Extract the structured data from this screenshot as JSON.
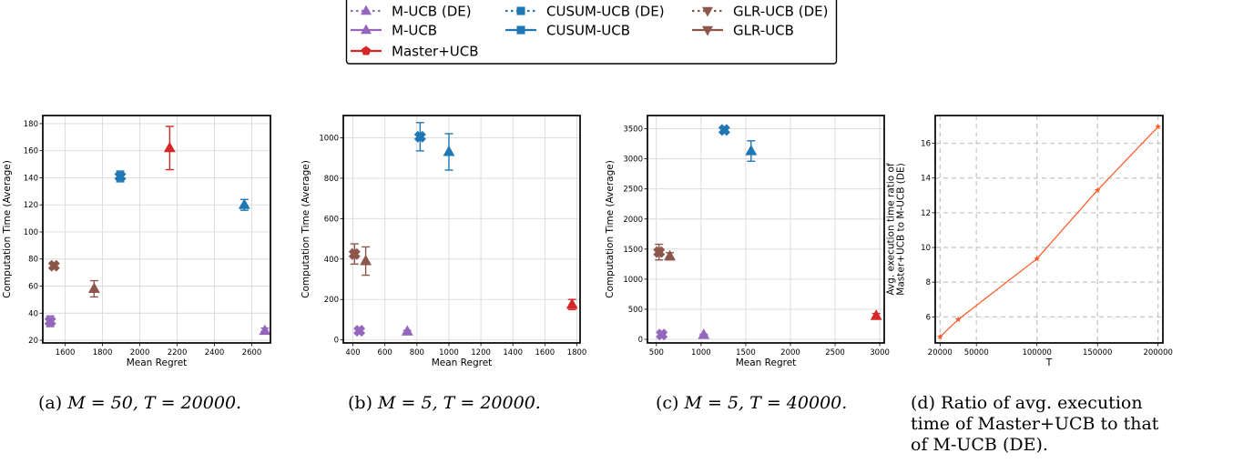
{
  "colors": {
    "m_ucb": "#9467bd",
    "cusum_ucb": "#1f77b4",
    "master_ucb": "#d62728",
    "glr_ucb": "#8c564b",
    "ratio_line": "#ff5722"
  },
  "legend": {
    "entries": [
      {
        "key": "m_ucb_de",
        "label": "M-UCB (DE)",
        "color": "#9467bd",
        "dashed": true,
        "marker": "triangle"
      },
      {
        "key": "m_ucb",
        "label": "M-UCB",
        "color": "#9467bd",
        "dashed": false,
        "marker": "triangle"
      },
      {
        "key": "master_ucb",
        "label": "Master+UCB",
        "color": "#d62728",
        "dashed": false,
        "marker": "pentagon"
      },
      {
        "key": "cusum_ucb_de",
        "label": "CUSUM-UCB (DE)",
        "color": "#1f77b4",
        "dashed": true,
        "marker": "square"
      },
      {
        "key": "cusum_ucb",
        "label": "CUSUM-UCB",
        "color": "#1f77b4",
        "dashed": false,
        "marker": "square"
      },
      {
        "key": "glr_ucb_de",
        "label": "GLR-UCB (DE)",
        "color": "#8c564b",
        "dashed": true,
        "marker": "tri-down"
      },
      {
        "key": "glr_ucb",
        "label": "GLR-UCB",
        "color": "#8c564b",
        "dashed": false,
        "marker": "tri-down"
      }
    ]
  },
  "captions": {
    "a": {
      "label": "(a)",
      "math": "M = 50, T = 20000."
    },
    "b": {
      "label": "(b)",
      "math": "M = 5, T = 20000."
    },
    "c": {
      "label": "(c)",
      "math": "M = 5, T = 40000."
    },
    "d": {
      "lines": [
        "(d) Ratio of avg. execution",
        "time of Master+UCB to that",
        "of M-UCB (DE)."
      ]
    }
  },
  "chart_data": [
    {
      "id": "a",
      "type": "scatter",
      "xlabel": "Mean Regret",
      "ylabel": "Computation Time (Average)",
      "xlim": [
        1480,
        2700
      ],
      "ylim": [
        18,
        186
      ],
      "xticks": [
        1600,
        1800,
        2000,
        2200,
        2400,
        2600
      ],
      "yticks": [
        20,
        40,
        60,
        80,
        100,
        120,
        140,
        160,
        180
      ],
      "grid": true,
      "points": [
        {
          "series": "M-UCB (DE)",
          "marker": "x",
          "color": "#9467bd",
          "x": 1520,
          "y": 34,
          "err": 4
        },
        {
          "series": "M-UCB",
          "marker": "triangle",
          "color": "#9467bd",
          "x": 2670,
          "y": 27,
          "err": 2
        },
        {
          "series": "GLR-UCB (DE)",
          "marker": "x",
          "color": "#8c564b",
          "x": 1540,
          "y": 75,
          "err": 2
        },
        {
          "series": "GLR-UCB",
          "marker": "triangle",
          "color": "#8c564b",
          "x": 1755,
          "y": 58,
          "err": 6
        },
        {
          "series": "CUSUM-UCB (DE)",
          "marker": "x",
          "color": "#1f77b4",
          "x": 1895,
          "y": 141,
          "err": 4
        },
        {
          "series": "CUSUM-UCB",
          "marker": "triangle",
          "color": "#1f77b4",
          "x": 2560,
          "y": 120,
          "err": 4
        },
        {
          "series": "Master+UCB",
          "marker": "triangle",
          "color": "#d62728",
          "x": 2160,
          "y": 162,
          "err": 16
        }
      ]
    },
    {
      "id": "b",
      "type": "scatter",
      "xlabel": "Mean Regret",
      "ylabel": "Computation Time (Average)",
      "xlim": [
        340,
        1820
      ],
      "ylim": [
        -15,
        1110
      ],
      "xticks": [
        400,
        600,
        800,
        1000,
        1200,
        1400,
        1600,
        1800
      ],
      "yticks": [
        0,
        200,
        400,
        600,
        800,
        1000
      ],
      "grid": true,
      "points": [
        {
          "series": "M-UCB (DE)",
          "marker": "x",
          "color": "#9467bd",
          "x": 440,
          "y": 45,
          "err": 5
        },
        {
          "series": "M-UCB",
          "marker": "triangle",
          "color": "#9467bd",
          "x": 740,
          "y": 42,
          "err": 5
        },
        {
          "series": "GLR-UCB (DE)",
          "marker": "x",
          "color": "#8c564b",
          "x": 410,
          "y": 425,
          "err": 50
        },
        {
          "series": "GLR-UCB",
          "marker": "triangle",
          "color": "#8c564b",
          "x": 480,
          "y": 390,
          "err": 70
        },
        {
          "series": "CUSUM-UCB (DE)",
          "marker": "x",
          "color": "#1f77b4",
          "x": 820,
          "y": 1005,
          "err": 70
        },
        {
          "series": "CUSUM-UCB",
          "marker": "triangle",
          "color": "#1f77b4",
          "x": 1000,
          "y": 930,
          "err": 90
        },
        {
          "series": "Master+UCB",
          "marker": "triangle",
          "color": "#d62728",
          "x": 1770,
          "y": 175,
          "err": 25
        }
      ]
    },
    {
      "id": "c",
      "type": "scatter",
      "xlabel": "Mean Regret",
      "ylabel": "Computation Time (Average)",
      "xlim": [
        400,
        3050
      ],
      "ylim": [
        -60,
        3720
      ],
      "xticks": [
        500,
        1000,
        1500,
        2000,
        2500,
        3000
      ],
      "yticks": [
        0,
        500,
        1000,
        1500,
        2000,
        2500,
        3000,
        3500
      ],
      "grid": true,
      "points": [
        {
          "series": "M-UCB (DE)",
          "marker": "x",
          "color": "#9467bd",
          "x": 560,
          "y": 80,
          "err": 10
        },
        {
          "series": "M-UCB",
          "marker": "triangle",
          "color": "#9467bd",
          "x": 1030,
          "y": 75,
          "err": 10
        },
        {
          "series": "GLR-UCB (DE)",
          "marker": "x",
          "color": "#8c564b",
          "x": 530,
          "y": 1450,
          "err": 130
        },
        {
          "series": "GLR-UCB",
          "marker": "triangle",
          "color": "#8c564b",
          "x": 650,
          "y": 1380,
          "err": 60
        },
        {
          "series": "CUSUM-UCB (DE)",
          "marker": "x",
          "color": "#1f77b4",
          "x": 1260,
          "y": 3480,
          "err": 40
        },
        {
          "series": "CUSUM-UCB",
          "marker": "triangle",
          "color": "#1f77b4",
          "x": 1560,
          "y": 3130,
          "err": 170
        },
        {
          "series": "Master+UCB",
          "marker": "triangle",
          "color": "#d62728",
          "x": 2960,
          "y": 390,
          "err": 40
        }
      ]
    },
    {
      "id": "d",
      "type": "line",
      "xlabel": "T",
      "ylabel": "Avg. execution time ratio of Master+UCB to M-UCB (DE)",
      "ylabel_lines": [
        "Avg. execution time ratio of",
        "Master+UCB to M-UCB (DE)"
      ],
      "xlim": [
        16000,
        204000
      ],
      "ylim": [
        4.5,
        17.6
      ],
      "xticks": [
        20000,
        50000,
        100000,
        150000,
        200000
      ],
      "yticks": [
        6,
        8,
        10,
        12,
        14,
        16
      ],
      "grid": "dashed",
      "x": [
        20000,
        35000,
        100000,
        150000,
        200000
      ],
      "y": [
        4.85,
        5.85,
        9.35,
        13.3,
        16.95
      ]
    }
  ]
}
